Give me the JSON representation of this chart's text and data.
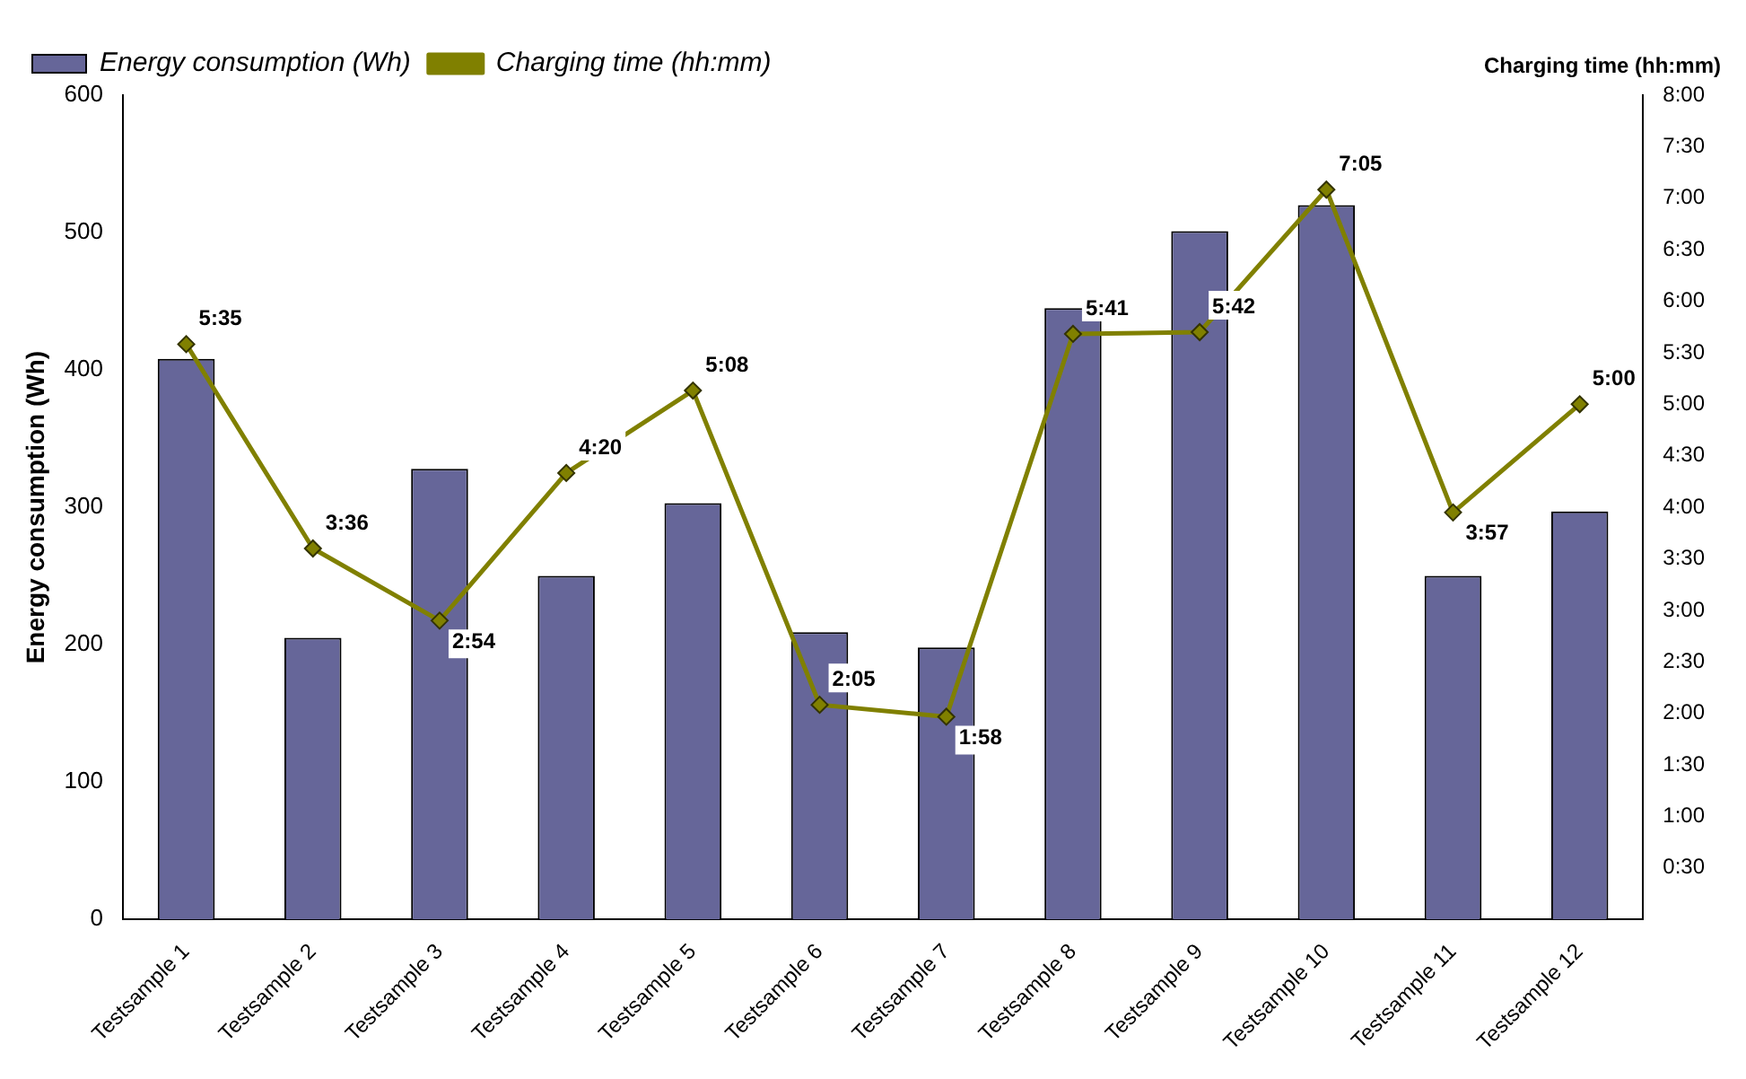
{
  "chart_data": {
    "type": "bar",
    "ylabel": "Energy consumption (Wh)",
    "y2label": "Charging time (hh:mm)",
    "categories": [
      "Testsample 1",
      "Testsample 2",
      "Testsample 3",
      "Testsample 4",
      "Testsample 5",
      "Testsample 6",
      "Testsample 7",
      "Testsample 8",
      "Testsample 9",
      "Testsample 10",
      "Testsample 11",
      "Testsample 12"
    ],
    "series": [
      {
        "name": "Energy consumption (Wh)",
        "color": "#666699",
        "values": [
          408,
          205,
          328,
          250,
          303,
          209,
          198,
          445,
          501,
          520,
          250,
          297
        ]
      },
      {
        "name": "Charging time (hh:mm)",
        "type": "line",
        "axis": "y2",
        "color": "#808000",
        "marker": "diamond",
        "values": [
          5.583,
          3.6,
          2.9,
          4.333,
          5.133,
          2.083,
          1.967,
          5.683,
          5.7,
          7.083,
          3.95,
          5.0
        ],
        "value_labels": [
          "5:35",
          "3:36",
          "2:54",
          "4:20",
          "5:08",
          "2:05",
          "1:58",
          "5:41",
          "5:42",
          "7:05",
          "3:57",
          "5:00"
        ]
      }
    ],
    "ylim": [
      0,
      600
    ],
    "yticks": [
      0,
      100,
      200,
      300,
      400,
      500,
      600
    ],
    "y2lim": [
      0,
      8
    ],
    "y2ticks": [
      {
        "value": 0,
        "label": null
      },
      {
        "value": 0.5,
        "label": "0:30"
      },
      {
        "value": 1,
        "label": "1:00"
      },
      {
        "value": 1.5,
        "label": "1:30"
      },
      {
        "value": 2,
        "label": "2:00"
      },
      {
        "value": 2.5,
        "label": "2:30"
      },
      {
        "value": 3,
        "label": "3:00"
      },
      {
        "value": 3.5,
        "label": "3:30"
      },
      {
        "value": 4,
        "label": "4:00"
      },
      {
        "value": 4.5,
        "label": "4:30"
      },
      {
        "value": 5,
        "label": "5:00"
      },
      {
        "value": 5.5,
        "label": "5:30"
      },
      {
        "value": 6,
        "label": "6:00"
      },
      {
        "value": 6.5,
        "label": "6:30"
      },
      {
        "value": 7,
        "label": "7:00"
      },
      {
        "value": 7.5,
        "label": "7:30"
      },
      {
        "value": 8,
        "label": "8:00"
      }
    ],
    "grid": false,
    "legend": "top left",
    "line_style": "solid"
  }
}
